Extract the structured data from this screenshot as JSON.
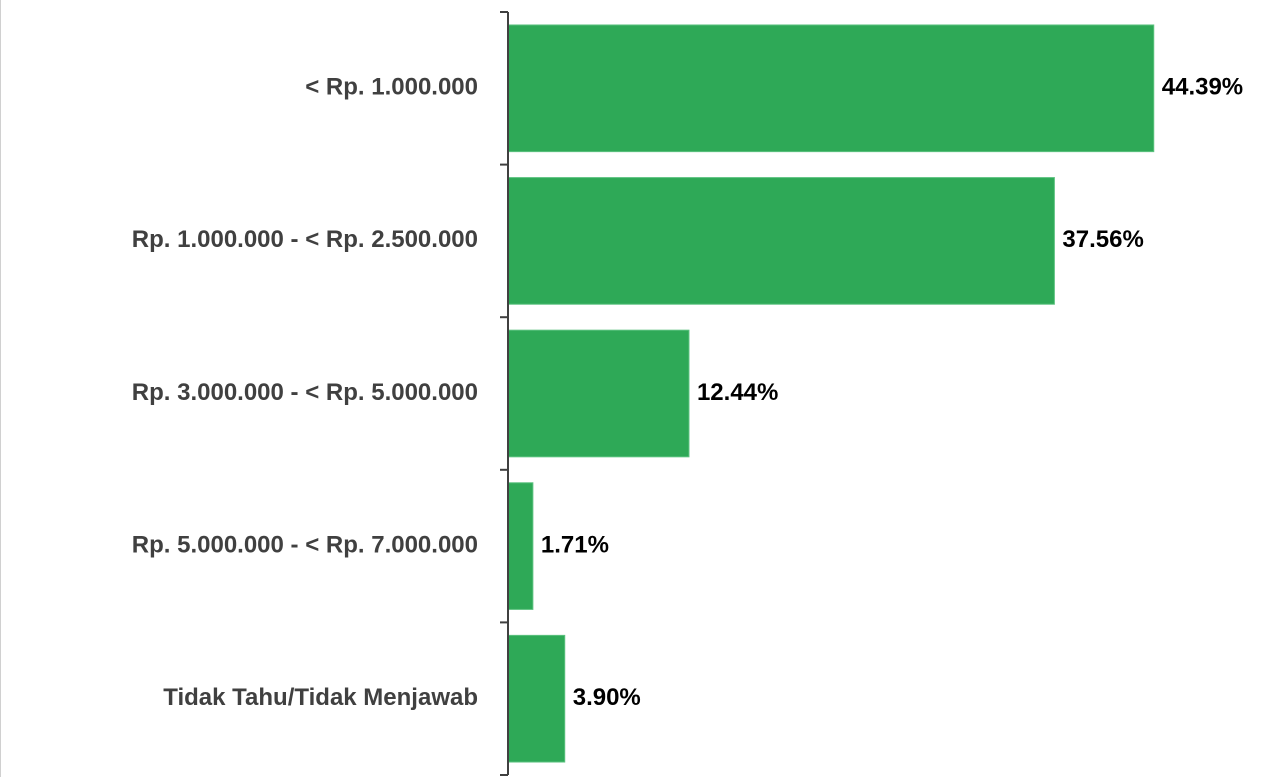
{
  "chart_data": {
    "type": "barh",
    "categories": [
      "< Rp. 1.000.000",
      "Rp. 1.000.000 - < Rp. 2.500.000",
      "Rp. 3.000.000 - < Rp. 5.000.000",
      "Rp. 5.000.000 - < Rp. 7.000.000",
      "Tidak Tahu/Tidak Menjawab"
    ],
    "values": [
      44.39,
      37.56,
      12.44,
      1.71,
      3.9
    ],
    "value_labels": [
      "44.39%",
      "37.56%",
      "12.44%",
      "1.71%",
      "3.90%"
    ],
    "color": "#2ea957",
    "xlim": [
      0,
      51.9
    ]
  }
}
